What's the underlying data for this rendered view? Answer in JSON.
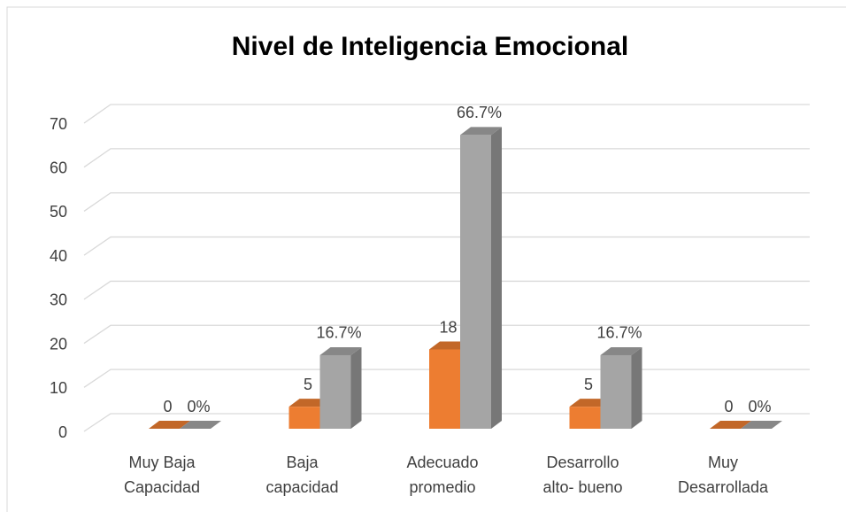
{
  "chart_data": {
    "type": "bar3d",
    "title": "Nivel de Inteligencia Emocional",
    "categories": [
      "Muy Baja Capacidad",
      "Baja capacidad",
      "Adecuado promedio",
      "Desarrollo alto- bueno",
      "Muy Desarrollada"
    ],
    "series": [
      {
        "color": "#ed7d31",
        "values": [
          0,
          5,
          18,
          5,
          0
        ]
      },
      {
        "color": "#a5a5a5",
        "values": [
          0,
          16.7,
          66.7,
          16.7,
          0
        ],
        "value_labels": [
          "0%",
          "16.7%",
          "66.7%",
          "16.7%",
          "0%"
        ]
      }
    ],
    "ylim": [
      0,
      70
    ],
    "yticks": [
      0,
      10,
      20,
      30,
      40,
      50,
      60,
      70
    ],
    "grid": true
  }
}
